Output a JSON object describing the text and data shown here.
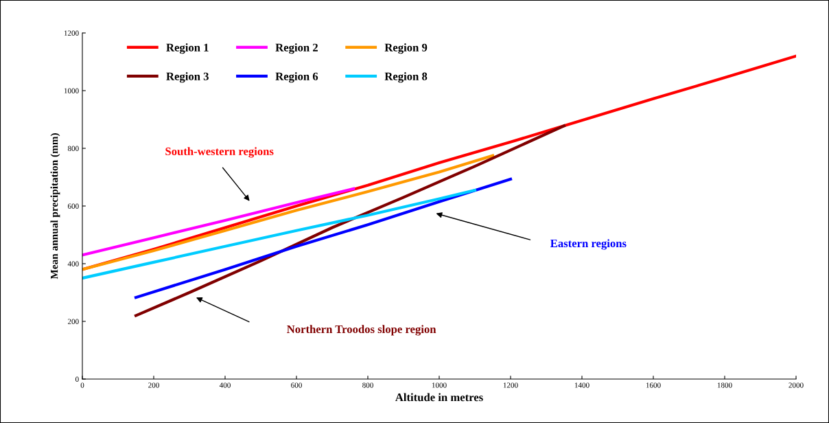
{
  "chart_data": {
    "type": "line",
    "xlabel": "Altitude in metres",
    "ylabel": "Mean annual precipitation (mm)",
    "xlim": [
      0,
      2000
    ],
    "ylim": [
      0,
      1200
    ],
    "xticks": [
      0,
      200,
      400,
      600,
      800,
      1000,
      1200,
      1400,
      1600,
      1800,
      2000
    ],
    "yticks": [
      0,
      200,
      400,
      600,
      800,
      1000,
      1200
    ],
    "grid": false,
    "legend": "top left",
    "marker": "none",
    "line_style": "solid",
    "series": [
      {
        "name": "Region 1",
        "color": "#ff0000",
        "x": [
          0,
          200,
          400,
          600,
          800,
          1000,
          1200,
          1400,
          1600,
          1800,
          2000
        ],
        "values": [
          380,
          450,
          525,
          600,
          672,
          750,
          822,
          897,
          972,
          1045,
          1120
        ]
      },
      {
        "name": "Region 2",
        "color": "#ff00ff",
        "x": [
          0,
          200,
          400,
          600,
          760
        ],
        "values": [
          430,
          490,
          550,
          612,
          660
        ]
      },
      {
        "name": "Region 9",
        "color": "#ff9900",
        "x": [
          0,
          200,
          400,
          600,
          800,
          1000,
          1150
        ],
        "values": [
          380,
          445,
          515,
          585,
          650,
          718,
          775
        ]
      },
      {
        "name": "Region 3",
        "color": "#800000",
        "x": [
          150,
          300,
          500,
          700,
          900,
          1100,
          1350
        ],
        "values": [
          220,
          300,
          410,
          525,
          630,
          738,
          878
        ]
      },
      {
        "name": "Region 6",
        "color": "#0000ff",
        "x": [
          150,
          400,
          600,
          800,
          1000,
          1200
        ],
        "values": [
          283,
          380,
          460,
          535,
          615,
          693
        ]
      },
      {
        "name": "Region 8",
        "color": "#00ccff",
        "x": [
          0,
          200,
          400,
          600,
          800,
          1000,
          1100
        ],
        "values": [
          350,
          405,
          460,
          515,
          568,
          625,
          655
        ]
      }
    ],
    "annotations": [
      "South-western regions",
      "Eastern regions",
      "Northern Troodos slope region"
    ]
  }
}
